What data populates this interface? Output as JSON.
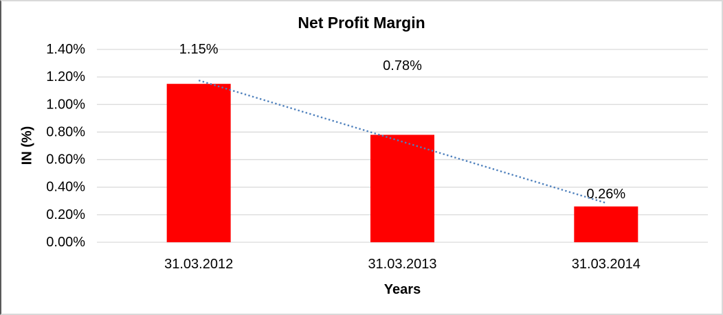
{
  "chart_data": {
    "type": "bar",
    "title": "Net Profit Margin",
    "xlabel": "Years",
    "ylabel": "IN (%)",
    "categories": [
      "31.03.2012",
      "31.03.2013",
      "31.03.2014"
    ],
    "values": [
      1.15,
      0.78,
      0.26
    ],
    "data_labels": [
      "1.15%",
      "0.78%",
      "0.26%"
    ],
    "ylim": [
      0,
      1.4
    ],
    "ytick_step": 0.2,
    "ytick_labels": [
      "0.00%",
      "0.20%",
      "0.40%",
      "0.60%",
      "0.80%",
      "1.00%",
      "1.20%",
      "1.40%"
    ],
    "grid": true,
    "legend": false,
    "bar_color": "#ff0000",
    "gridline_color": "#d9d9d9",
    "trendline": {
      "type": "linear",
      "style": "dotted",
      "color": "#4f81bd",
      "value_start": 1.175,
      "value_end": 0.285
    }
  }
}
